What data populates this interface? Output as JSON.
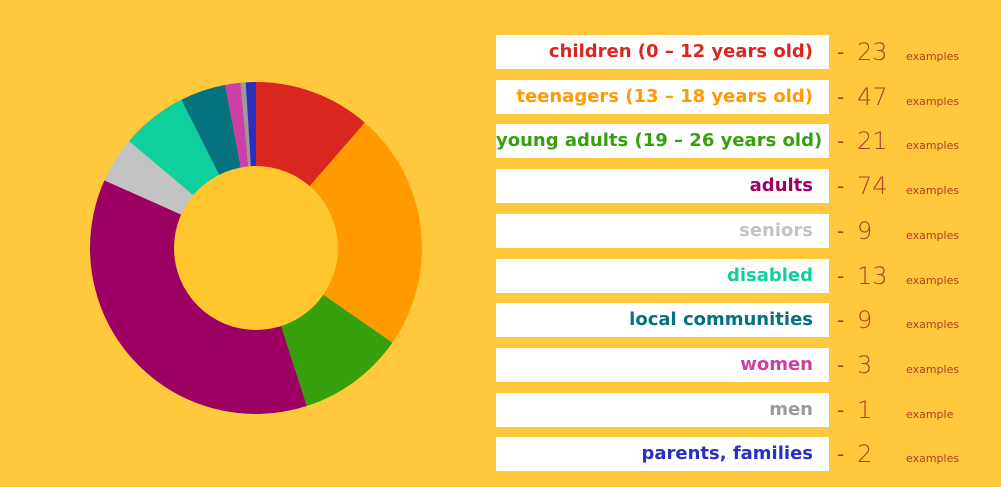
{
  "chart_data": {
    "type": "pie",
    "donut": true,
    "categories": [
      "children (0 – 12 years old)",
      "teenagers (13 – 18 years old)",
      "young adults (19 – 26 years old)",
      "adults",
      "seniors",
      "disabled",
      "local communities",
      "women",
      "men",
      "parents, families"
    ],
    "values": [
      23,
      47,
      21,
      74,
      9,
      13,
      9,
      3,
      1,
      2
    ],
    "units": [
      "examples",
      "examples",
      "examples",
      "examples",
      "examples",
      "examples",
      "examples",
      "examples",
      "example",
      "examples"
    ],
    "colors": [
      "#d9261f",
      "#ff9b00",
      "#36a10c",
      "#9c0063",
      "#c3c3c3",
      "#0fcf9d",
      "#05727f",
      "#cc3fa6",
      "#9a9a9a",
      "#2b2fbb"
    ],
    "legend_placement": "right"
  },
  "background_color": "#ffc83d",
  "hole_color": "#ffc72d",
  "value_text_color": "#b43c2a"
}
